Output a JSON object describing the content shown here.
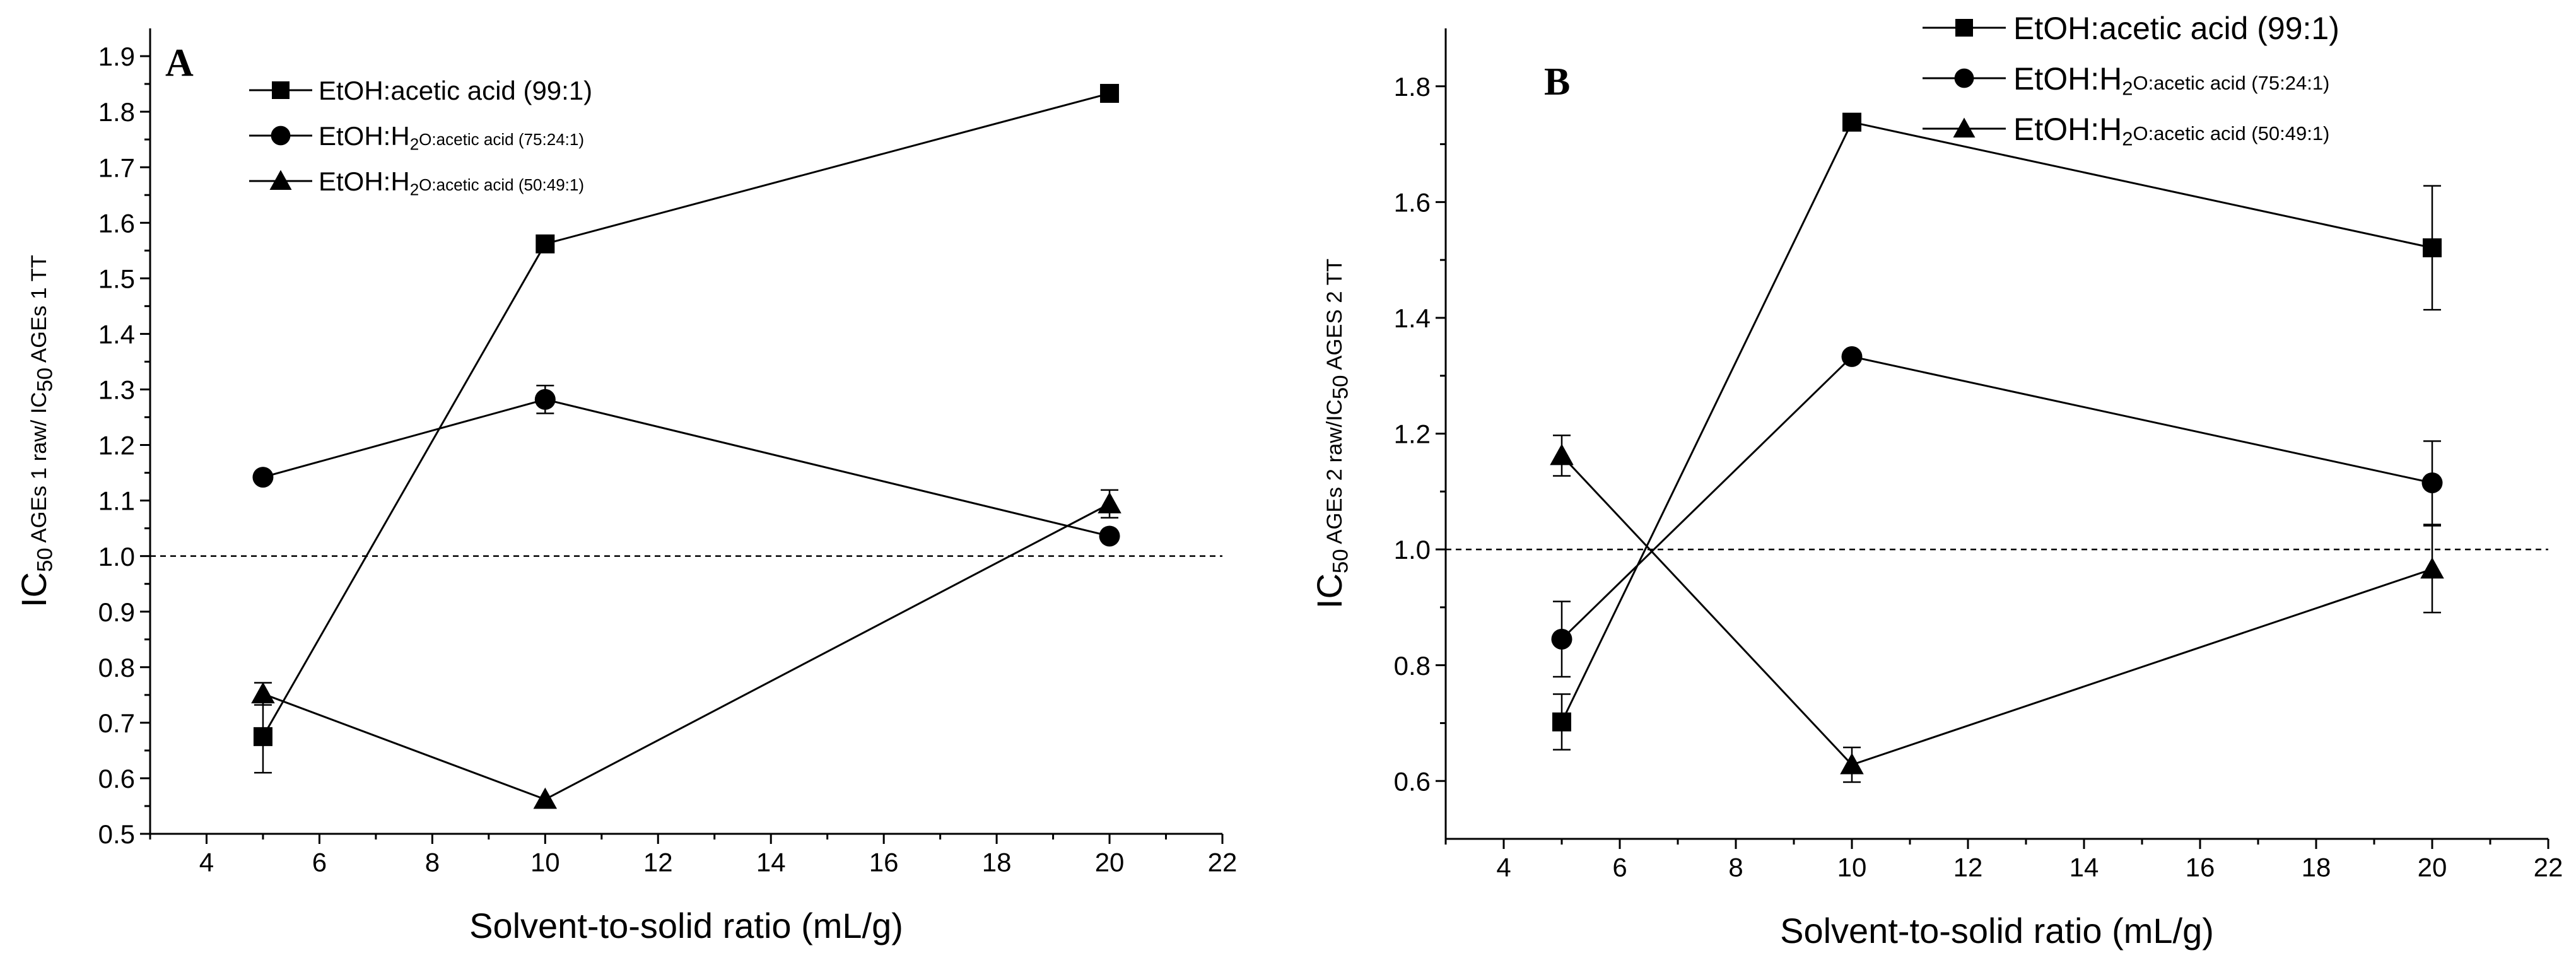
{
  "chart_data": [
    {
      "type": "line",
      "panel_label": "A",
      "xlabel": "Solvent-to-solid ratio (mL/g)",
      "ylabel": {
        "p1": "IC",
        "s1": "50",
        "p2": " AGEs 1 raw/ IC",
        "s2": "50",
        "p3": " AGEs 1 TT"
      },
      "xlim": [
        3,
        22
      ],
      "ylim": [
        0.5,
        1.95
      ],
      "xticks": [
        4,
        6,
        8,
        10,
        12,
        14,
        16,
        18,
        20,
        22
      ],
      "xtick_labels": [
        "4",
        "6",
        "8",
        "10",
        "12",
        "14",
        "16",
        "18",
        "20",
        "22"
      ],
      "yticks": [
        0.5,
        0.6,
        0.7,
        0.8,
        0.9,
        1.0,
        1.1,
        1.2,
        1.3,
        1.4,
        1.5,
        1.6,
        1.7,
        1.8,
        1.9
      ],
      "ytick_labels": [
        "0.5",
        "0.6",
        "0.7",
        "0.8",
        "0.9",
        "1.0",
        "1.1",
        "1.2",
        "1.3",
        "1.4",
        "1.5",
        "1.6",
        "1.7",
        "1.8",
        "1.9"
      ],
      "reference_line": 1.0,
      "x": [
        5,
        10,
        20
      ],
      "series": [
        {
          "name": "EtOH:acetic acid (99:1)",
          "legend": {
            "p1": "EtOH:acetic acid (99:1)",
            "s1": "",
            "p2": ""
          },
          "marker": "square",
          "values": [
            0.675,
            1.562,
            1.833
          ],
          "errors": [
            0.065,
            0.0,
            0.0
          ]
        },
        {
          "name": "EtOH:H2O:acetic acid (75:24:1)",
          "legend": {
            "p1": "EtOH:H",
            "s1": "2",
            "p2": "O:acetic acid (75:24:1)"
          },
          "marker": "circle",
          "values": [
            1.142,
            1.282,
            1.036
          ],
          "errors": [
            0.0,
            0.025,
            0.0
          ]
        },
        {
          "name": "EtOH:H2O:acetic acid (50:49:1)",
          "legend": {
            "p1": "EtOH:H",
            "s1": "2",
            "p2": "O:acetic acid (50:49:1)"
          },
          "marker": "triangle",
          "values": [
            0.752,
            0.562,
            1.094
          ],
          "errors": [
            0.02,
            0.0,
            0.025
          ]
        }
      ]
    },
    {
      "type": "line",
      "panel_label": "B",
      "xlabel": "Solvent-to-solid ratio (mL/g)",
      "ylabel": {
        "p1": "IC",
        "s1": "50",
        "p2": " AGEs 2 raw/IC",
        "s2": "50",
        "p3": " AGES 2  TT"
      },
      "xlim": [
        3,
        22
      ],
      "ylim": [
        0.5,
        1.9
      ],
      "xticks": [
        4,
        6,
        8,
        10,
        12,
        14,
        16,
        18,
        20,
        22
      ],
      "xtick_labels": [
        "4",
        "6",
        "8",
        "10",
        "12",
        "14",
        "16",
        "18",
        "20",
        "22"
      ],
      "yticks": [
        0.6,
        0.8,
        1.0,
        1.2,
        1.4,
        1.6,
        1.8
      ],
      "ytick_labels": [
        "0.6",
        "0.8",
        "1.0",
        "1.2",
        "1.4",
        "1.6",
        "1.8"
      ],
      "reference_line": 1.0,
      "x": [
        5,
        10,
        20
      ],
      "series": [
        {
          "name": "EtOH:acetic acid (99:1)",
          "legend": {
            "p1": "EtOH:acetic acid (99:1)",
            "s1": "",
            "p2": ""
          },
          "marker": "square",
          "values": [
            0.702,
            1.738,
            1.521
          ],
          "errors": [
            0.048,
            0.0,
            0.107
          ]
        },
        {
          "name": "EtOH:H2O:acetic acid (75:24:1)",
          "legend": {
            "p1": "EtOH:H",
            "s1": "2",
            "p2": "O:acetic acid (75:24:1)"
          },
          "marker": "circle",
          "values": [
            0.845,
            1.333,
            1.115
          ],
          "errors": [
            0.065,
            0.0,
            0.072
          ]
        },
        {
          "name": "EtOH:H2O:acetic acid (50:49:1)",
          "legend": {
            "p1": "EtOH:H",
            "s1": "2",
            "p2": "O:acetic acid (50:49:1)"
          },
          "marker": "triangle",
          "values": [
            1.162,
            0.628,
            0.966
          ],
          "errors": [
            0.035,
            0.03,
            0.075
          ]
        }
      ]
    }
  ]
}
